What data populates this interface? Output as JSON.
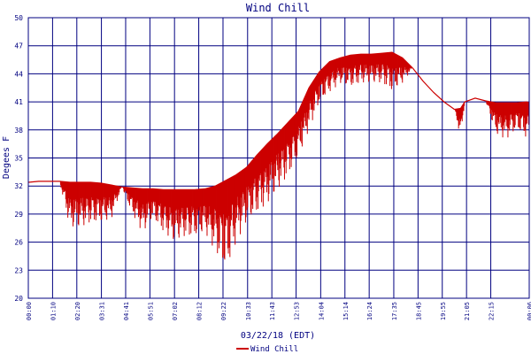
{
  "chart_data": {
    "type": "line",
    "title": "Wind Chill",
    "xlabel": "03/22/18 (EDT)",
    "ylabel": "Degees F",
    "legend": "bottom-center",
    "grid": true,
    "ylim": [
      20,
      50
    ],
    "y_ticks": [
      20,
      23,
      26,
      29,
      32,
      35,
      38,
      41,
      44,
      47,
      50
    ],
    "x_ticks": [
      "00:00",
      "01:10",
      "02:20",
      "03:31",
      "04:41",
      "05:51",
      "07:02",
      "08:12",
      "09:22",
      "10:33",
      "11:43",
      "12:53",
      "14:04",
      "15:14",
      "16:24",
      "17:35",
      "18:45",
      "19:55",
      "21:05",
      "22:15",
      "00:06"
    ],
    "x_tick_hours": [
      0,
      1.1667,
      2.3333,
      3.5167,
      4.6833,
      5.85,
      7.0333,
      8.2,
      9.3667,
      10.55,
      11.7167,
      12.8833,
      14.0667,
      15.2333,
      16.4,
      17.5833,
      18.75,
      19.9167,
      21.0833,
      22.25,
      24.1
    ],
    "series": [
      {
        "name": "Wind Chill",
        "color": "#cc0000",
        "x_hours": [
          0,
          0.5,
          1.0,
          1.5,
          2.0,
          2.5,
          3.0,
          3.5,
          4.0,
          4.5,
          5.0,
          5.5,
          6.0,
          6.5,
          7.0,
          7.5,
          8.0,
          8.5,
          9.0,
          9.5,
          10.0,
          10.5,
          11.0,
          11.5,
          12.0,
          12.5,
          13.0,
          13.5,
          14.0,
          14.5,
          15.0,
          15.5,
          16.0,
          16.5,
          17.0,
          17.5,
          18.0,
          18.5,
          19.0,
          19.5,
          20.0,
          20.5,
          20.8,
          21.0,
          21.5,
          22.0,
          22.5,
          23.0,
          23.5,
          24.0
        ],
        "upper": [
          32.4,
          32.5,
          32.5,
          32.5,
          32.4,
          32.4,
          32.4,
          32.3,
          32.1,
          31.9,
          31.8,
          31.7,
          31.7,
          31.6,
          31.6,
          31.6,
          31.6,
          31.7,
          32.0,
          32.6,
          33.2,
          34.0,
          35.3,
          36.5,
          37.6,
          38.8,
          40.0,
          42.5,
          44.2,
          45.3,
          45.7,
          46.0,
          46.1,
          46.1,
          46.2,
          46.3,
          45.7,
          44.6,
          43.2,
          42.0,
          41.0,
          40.2,
          40.3,
          41.0,
          41.4,
          41.1,
          40.9,
          40.9,
          40.9,
          41.0
        ],
        "lower": [
          32.4,
          32.5,
          32.5,
          32.5,
          27.5,
          27.5,
          28.0,
          28.0,
          28.5,
          31.9,
          29.0,
          27.0,
          28.5,
          27.0,
          26.0,
          26.5,
          26.5,
          27.0,
          25.0,
          22.5,
          26.0,
          28.0,
          29.0,
          30.0,
          31.5,
          33.0,
          35.0,
          38.0,
          40.8,
          42.0,
          43.0,
          42.5,
          43.0,
          43.0,
          43.0,
          42.0,
          43.0,
          44.6,
          43.2,
          42.0,
          41.0,
          40.2,
          37.0,
          41.0,
          41.4,
          41.1,
          37.5,
          37.0,
          38.0,
          37.0
        ]
      }
    ]
  }
}
